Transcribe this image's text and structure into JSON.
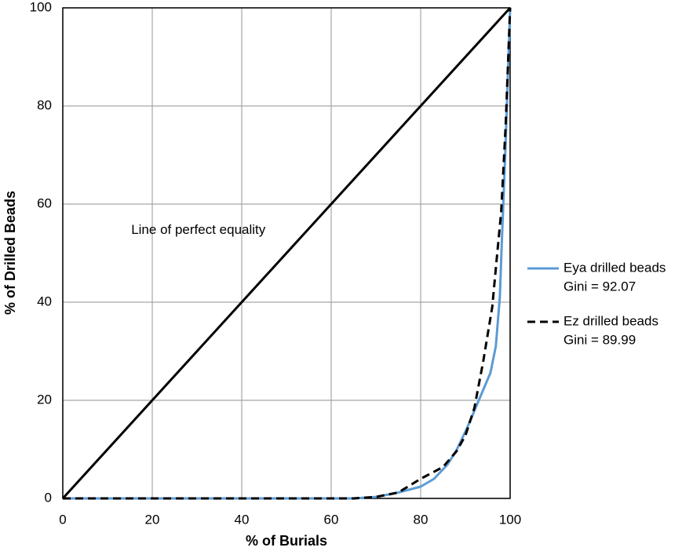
{
  "chart_data": {
    "type": "line",
    "xlabel": "% of Burials",
    "ylabel": "% of Drilled Beads",
    "xlim": [
      0,
      100
    ],
    "ylim": [
      0,
      100
    ],
    "xticks": [
      0,
      20,
      40,
      60,
      80,
      100
    ],
    "yticks": [
      0,
      20,
      40,
      60,
      80,
      100
    ],
    "grid": true,
    "legend_position": "right",
    "reference_line": {
      "label": "Line of perfect equality",
      "label_x": 15.3,
      "label_y": 54.6,
      "x": [
        0,
        100
      ],
      "values": [
        0,
        100
      ],
      "color": "#000000"
    },
    "series": [
      {
        "name": "Eya drilled beads",
        "note": "Gini = 92.07",
        "color": "#5b9bd5",
        "dashed": false,
        "x": [
          0,
          65,
          70,
          75,
          80,
          83,
          86,
          88,
          90.4,
          93,
          95.6,
          96.8,
          97.7,
          98.2,
          98.9,
          99.6,
          100
        ],
        "values": [
          0,
          0,
          0.3,
          1.2,
          2.4,
          4,
          6.9,
          9.8,
          14.4,
          20,
          25.6,
          31,
          41,
          53.6,
          70,
          89,
          100
        ]
      },
      {
        "name": "Ez drilled beads",
        "note": "Gini = 89.99",
        "color": "#000000",
        "dashed": true,
        "x": [
          0,
          65,
          70,
          75,
          80,
          85,
          88,
          90,
          92,
          94,
          96,
          97,
          98,
          99,
          100
        ],
        "values": [
          0,
          0,
          0.3,
          1.2,
          4,
          6.4,
          9.6,
          12.8,
          18.4,
          28,
          39,
          48.8,
          58.4,
          76,
          100
        ]
      }
    ]
  }
}
